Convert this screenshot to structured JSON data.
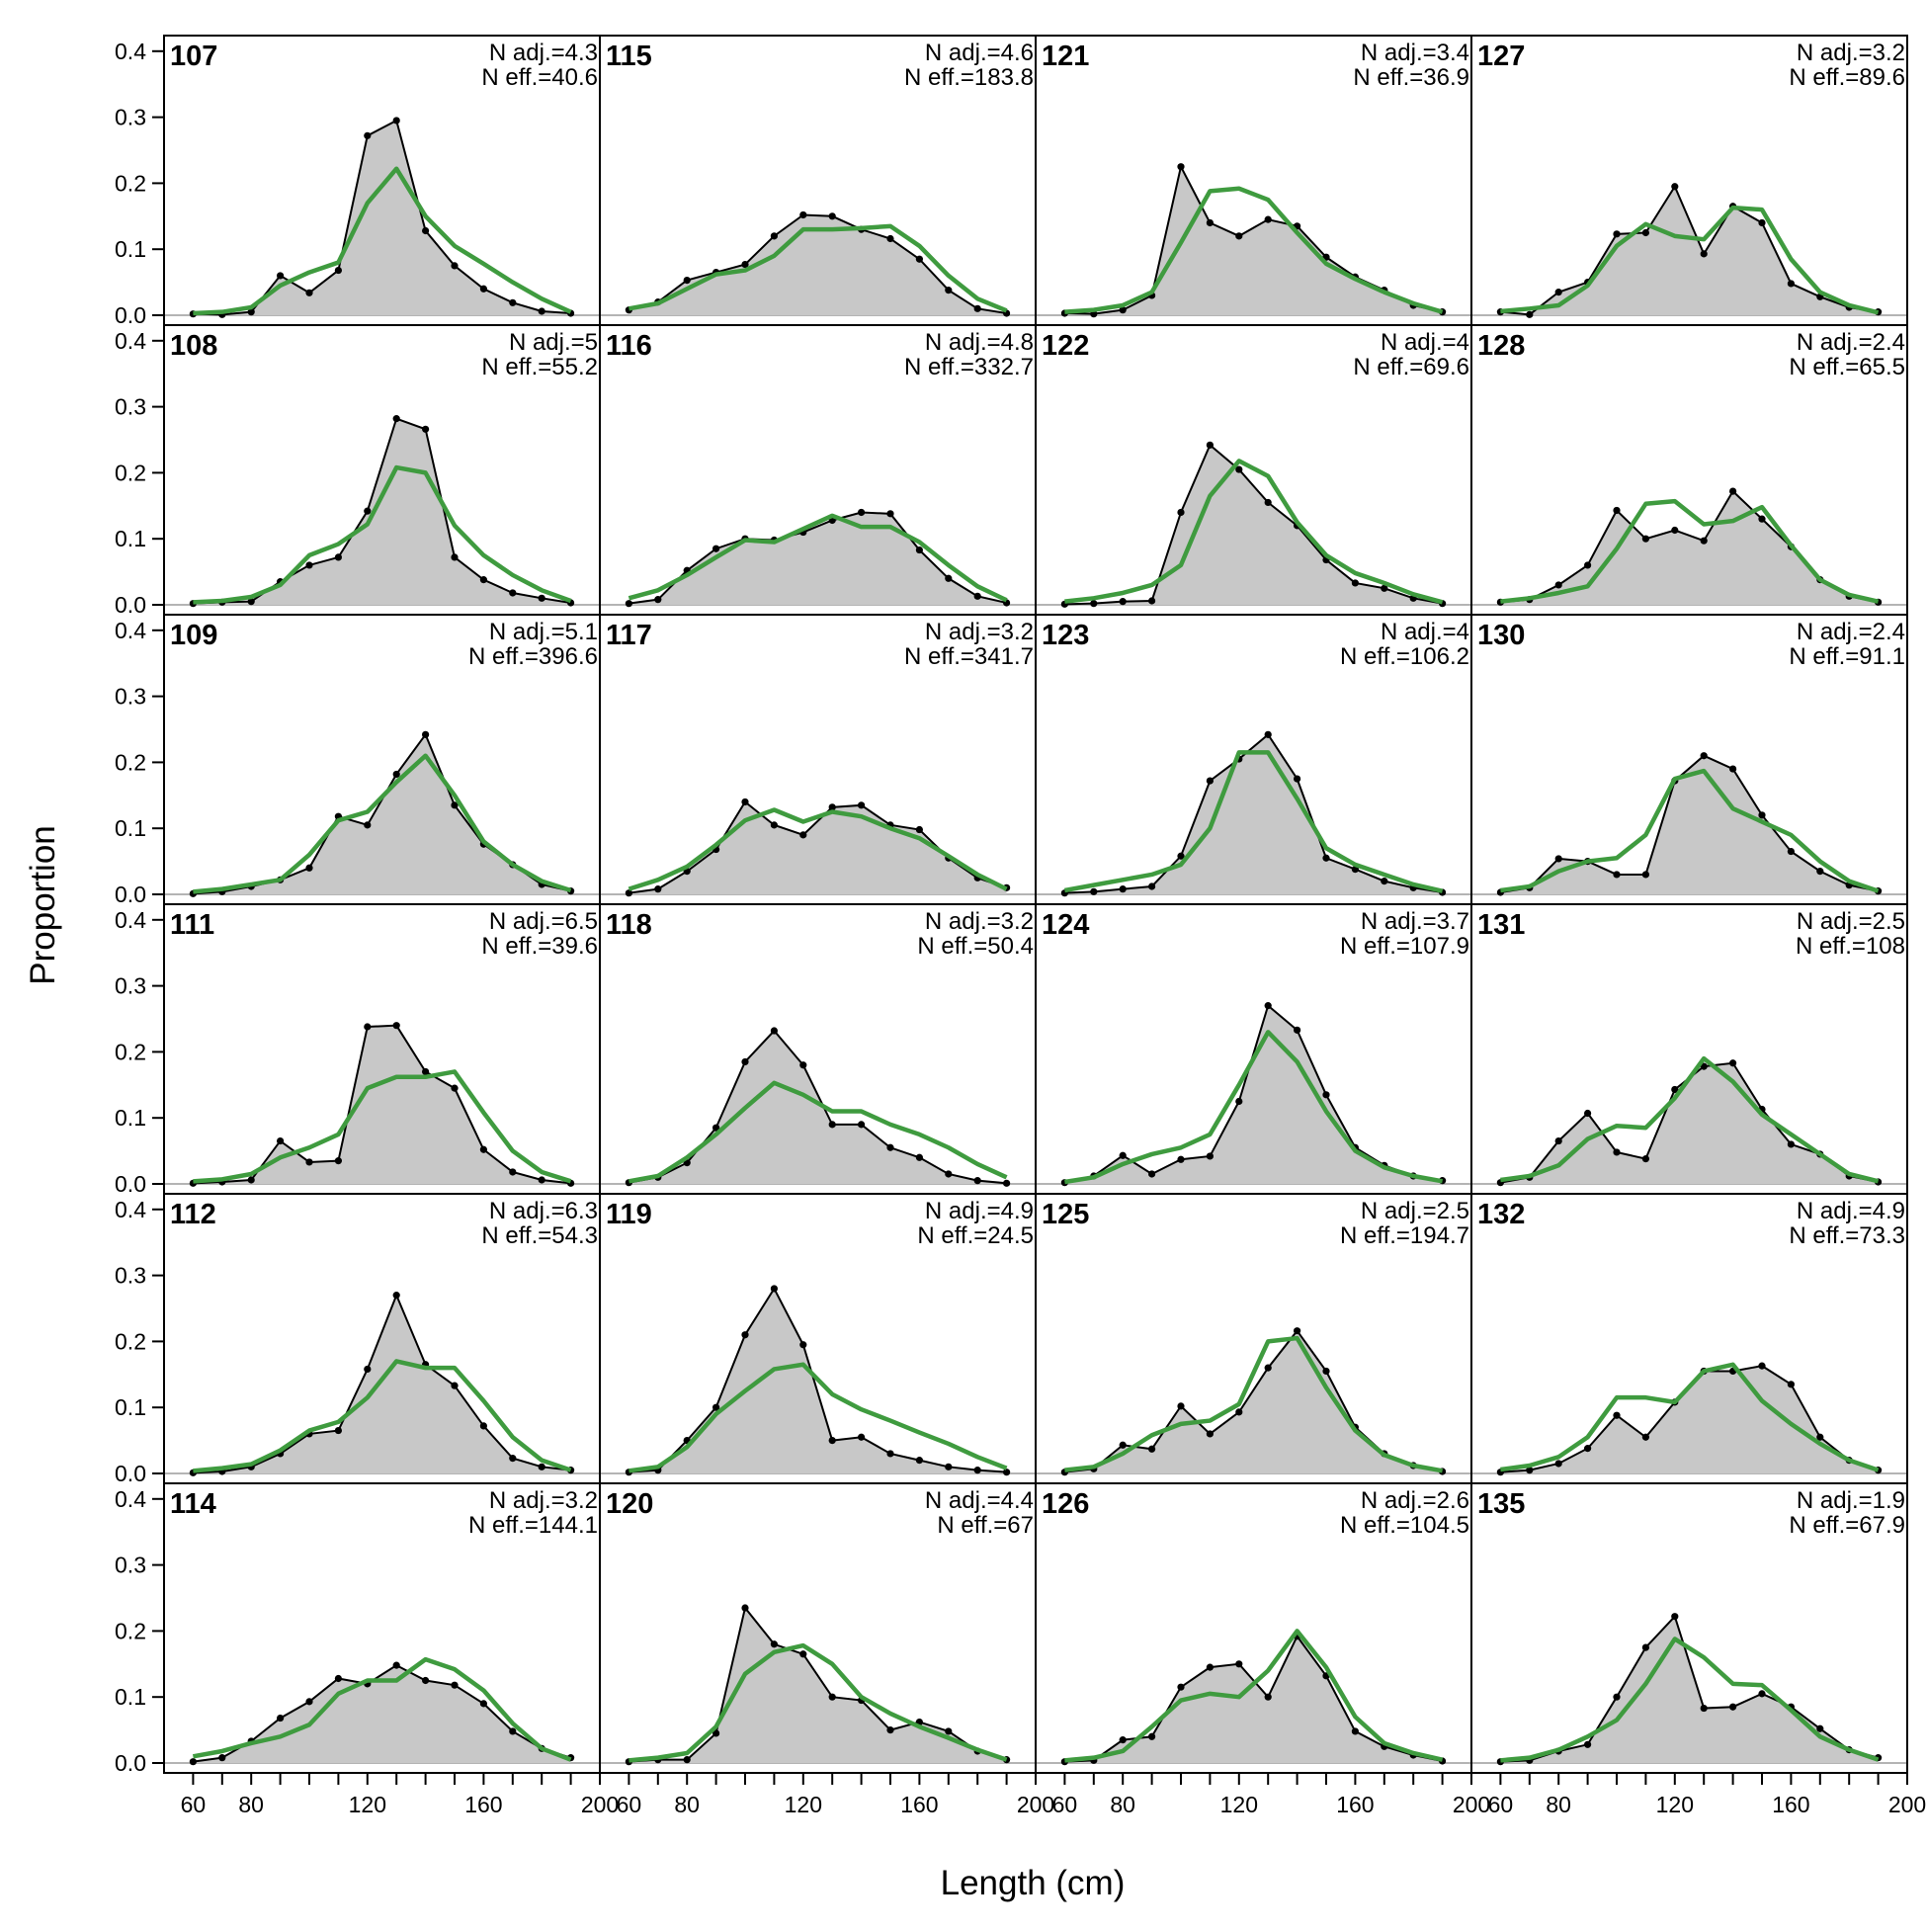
{
  "chart_data": {
    "type": "area",
    "xlabel": "Length (cm)",
    "ylabel": "Proportion",
    "xlim": [
      50,
      200
    ],
    "ylim": [
      0,
      0.4
    ],
    "x_ticks": [
      60,
      80,
      120,
      160,
      200
    ],
    "y_ticks": [
      0.0,
      0.1,
      0.2,
      0.3,
      0.4
    ],
    "y_tick_labels": [
      "0.0",
      "0.1",
      "0.2",
      "0.3",
      "0.4"
    ],
    "x_bins": [
      60,
      70,
      80,
      90,
      100,
      110,
      120,
      130,
      140,
      150,
      160,
      170,
      180,
      190
    ],
    "grid": false,
    "colors": {
      "observed_fill": "#c8c8c8",
      "observed_line": "#000000",
      "expected_line": "#3f9b3f",
      "zero_line": "#b4b4b4"
    },
    "panels": [
      {
        "label": "107",
        "n_adj": "N adj.=4.3",
        "n_eff": "N eff.=40.6",
        "observed": [
          0.002,
          0.001,
          0.005,
          0.06,
          0.034,
          0.068,
          0.272,
          0.295,
          0.128,
          0.075,
          0.04,
          0.019,
          0.006,
          0.003
        ],
        "expected": [
          0.003,
          0.005,
          0.012,
          0.045,
          0.065,
          0.08,
          0.17,
          0.222,
          0.15,
          0.105,
          0.078,
          0.05,
          0.025,
          0.005
        ]
      },
      {
        "label": "115",
        "n_adj": "N adj.=4.6",
        "n_eff": "N eff.=183.8",
        "observed": [
          0.008,
          0.02,
          0.053,
          0.065,
          0.077,
          0.12,
          0.152,
          0.15,
          0.13,
          0.116,
          0.085,
          0.038,
          0.01,
          0.003
        ],
        "expected": [
          0.01,
          0.018,
          0.04,
          0.062,
          0.068,
          0.09,
          0.13,
          0.13,
          0.132,
          0.135,
          0.105,
          0.06,
          0.025,
          0.007
        ]
      },
      {
        "label": "121",
        "n_adj": "N adj.=3.4",
        "n_eff": "N eff.=36.9",
        "observed": [
          0.003,
          0.002,
          0.008,
          0.03,
          0.225,
          0.14,
          0.12,
          0.145,
          0.135,
          0.088,
          0.058,
          0.038,
          0.015,
          0.005
        ],
        "expected": [
          0.005,
          0.008,
          0.015,
          0.035,
          0.11,
          0.188,
          0.192,
          0.175,
          0.125,
          0.078,
          0.055,
          0.035,
          0.018,
          0.005
        ]
      },
      {
        "label": "127",
        "n_adj": "N adj.=3.2",
        "n_eff": "N eff.=89.6",
        "observed": [
          0.005,
          0.001,
          0.035,
          0.05,
          0.123,
          0.125,
          0.195,
          0.093,
          0.165,
          0.14,
          0.048,
          0.028,
          0.012,
          0.005
        ],
        "expected": [
          0.006,
          0.01,
          0.015,
          0.045,
          0.105,
          0.138,
          0.12,
          0.115,
          0.163,
          0.16,
          0.085,
          0.035,
          0.015,
          0.004
        ]
      },
      {
        "label": "108",
        "n_adj": "N adj.=5",
        "n_eff": "N eff.=55.2",
        "observed": [
          0.002,
          0.004,
          0.005,
          0.035,
          0.06,
          0.072,
          0.142,
          0.282,
          0.266,
          0.072,
          0.038,
          0.018,
          0.01,
          0.003
        ],
        "expected": [
          0.004,
          0.006,
          0.012,
          0.03,
          0.075,
          0.092,
          0.122,
          0.208,
          0.2,
          0.12,
          0.075,
          0.045,
          0.022,
          0.006
        ]
      },
      {
        "label": "116",
        "n_adj": "N adj.=4.8",
        "n_eff": "N eff.=332.7",
        "observed": [
          0.002,
          0.008,
          0.052,
          0.085,
          0.1,
          0.098,
          0.11,
          0.128,
          0.14,
          0.138,
          0.083,
          0.04,
          0.013,
          0.003
        ],
        "expected": [
          0.01,
          0.022,
          0.045,
          0.072,
          0.098,
          0.095,
          0.115,
          0.135,
          0.118,
          0.118,
          0.095,
          0.06,
          0.028,
          0.007
        ]
      },
      {
        "label": "122",
        "n_adj": "N adj.=4",
        "n_eff": "N eff.=69.6",
        "observed": [
          0.001,
          0.002,
          0.005,
          0.006,
          0.14,
          0.242,
          0.205,
          0.155,
          0.12,
          0.068,
          0.033,
          0.025,
          0.01,
          0.002
        ],
        "expected": [
          0.005,
          0.01,
          0.018,
          0.03,
          0.06,
          0.165,
          0.218,
          0.195,
          0.125,
          0.075,
          0.048,
          0.033,
          0.016,
          0.004
        ]
      },
      {
        "label": "128",
        "n_adj": "N adj.=2.4",
        "n_eff": "N eff.=65.5",
        "observed": [
          0.004,
          0.008,
          0.03,
          0.06,
          0.143,
          0.1,
          0.113,
          0.097,
          0.172,
          0.13,
          0.088,
          0.038,
          0.013,
          0.004
        ],
        "expected": [
          0.005,
          0.01,
          0.018,
          0.028,
          0.085,
          0.153,
          0.157,
          0.122,
          0.127,
          0.148,
          0.09,
          0.038,
          0.015,
          0.005
        ]
      },
      {
        "label": "109",
        "n_adj": "N adj.=5.1",
        "n_eff": "N eff.=396.6",
        "observed": [
          0.001,
          0.004,
          0.012,
          0.022,
          0.04,
          0.118,
          0.105,
          0.182,
          0.242,
          0.135,
          0.076,
          0.045,
          0.015,
          0.005
        ],
        "expected": [
          0.004,
          0.008,
          0.015,
          0.022,
          0.06,
          0.112,
          0.125,
          0.17,
          0.21,
          0.15,
          0.08,
          0.045,
          0.02,
          0.006
        ]
      },
      {
        "label": "117",
        "n_adj": "N adj.=3.2",
        "n_eff": "N eff.=341.7",
        "observed": [
          0.002,
          0.008,
          0.035,
          0.068,
          0.14,
          0.105,
          0.09,
          0.132,
          0.135,
          0.105,
          0.098,
          0.055,
          0.025,
          0.01
        ],
        "expected": [
          0.008,
          0.022,
          0.042,
          0.075,
          0.112,
          0.128,
          0.11,
          0.125,
          0.118,
          0.1,
          0.085,
          0.058,
          0.03,
          0.008
        ]
      },
      {
        "label": "123",
        "n_adj": "N adj.=4",
        "n_eff": "N eff.=106.2",
        "observed": [
          0.002,
          0.004,
          0.008,
          0.012,
          0.058,
          0.172,
          0.205,
          0.242,
          0.175,
          0.055,
          0.038,
          0.02,
          0.01,
          0.003
        ],
        "expected": [
          0.006,
          0.014,
          0.022,
          0.03,
          0.045,
          0.1,
          0.215,
          0.215,
          0.145,
          0.07,
          0.045,
          0.03,
          0.015,
          0.005
        ]
      },
      {
        "label": "130",
        "n_adj": "N adj.=2.4",
        "n_eff": "N eff.=91.1",
        "observed": [
          0.003,
          0.01,
          0.054,
          0.05,
          0.03,
          0.03,
          0.172,
          0.21,
          0.19,
          0.12,
          0.065,
          0.035,
          0.014,
          0.005
        ],
        "expected": [
          0.006,
          0.012,
          0.035,
          0.05,
          0.055,
          0.09,
          0.175,
          0.187,
          0.13,
          0.11,
          0.09,
          0.05,
          0.02,
          0.005
        ]
      },
      {
        "label": "111",
        "n_adj": "N adj.=6.5",
        "n_eff": "N eff.=39.6",
        "observed": [
          0.001,
          0.003,
          0.006,
          0.065,
          0.033,
          0.035,
          0.238,
          0.24,
          0.17,
          0.145,
          0.052,
          0.018,
          0.006,
          0.001
        ],
        "expected": [
          0.004,
          0.007,
          0.015,
          0.04,
          0.055,
          0.075,
          0.145,
          0.162,
          0.162,
          0.17,
          0.108,
          0.05,
          0.018,
          0.004
        ]
      },
      {
        "label": "118",
        "n_adj": "N adj.=3.2",
        "n_eff": "N eff.=50.4",
        "observed": [
          0.002,
          0.01,
          0.032,
          0.085,
          0.185,
          0.232,
          0.18,
          0.09,
          0.09,
          0.055,
          0.04,
          0.015,
          0.005,
          0.001
        ],
        "expected": [
          0.004,
          0.012,
          0.04,
          0.075,
          0.115,
          0.153,
          0.135,
          0.11,
          0.11,
          0.09,
          0.075,
          0.055,
          0.03,
          0.01
        ]
      },
      {
        "label": "124",
        "n_adj": "N adj.=3.7",
        "n_eff": "N eff.=107.9",
        "observed": [
          0.002,
          0.012,
          0.043,
          0.015,
          0.037,
          0.042,
          0.125,
          0.27,
          0.233,
          0.135,
          0.055,
          0.028,
          0.012,
          0.005
        ],
        "expected": [
          0.003,
          0.01,
          0.03,
          0.045,
          0.055,
          0.075,
          0.15,
          0.23,
          0.185,
          0.11,
          0.05,
          0.025,
          0.012,
          0.004
        ]
      },
      {
        "label": "131",
        "n_adj": "N adj.=2.5",
        "n_eff": "N eff.=108",
        "observed": [
          0.002,
          0.01,
          0.065,
          0.107,
          0.048,
          0.038,
          0.143,
          0.178,
          0.183,
          0.113,
          0.06,
          0.045,
          0.012,
          0.003
        ],
        "expected": [
          0.006,
          0.012,
          0.028,
          0.068,
          0.088,
          0.085,
          0.13,
          0.19,
          0.155,
          0.105,
          0.075,
          0.045,
          0.015,
          0.004
        ]
      },
      {
        "label": "112",
        "n_adj": "N adj.=6.3",
        "n_eff": "N eff.=54.3",
        "observed": [
          0.001,
          0.003,
          0.01,
          0.03,
          0.06,
          0.065,
          0.158,
          0.27,
          0.165,
          0.133,
          0.072,
          0.023,
          0.01,
          0.005
        ],
        "expected": [
          0.004,
          0.008,
          0.014,
          0.035,
          0.065,
          0.078,
          0.115,
          0.17,
          0.16,
          0.16,
          0.11,
          0.055,
          0.02,
          0.005
        ]
      },
      {
        "label": "119",
        "n_adj": "N adj.=4.9",
        "n_eff": "N eff.=24.5",
        "observed": [
          0.002,
          0.005,
          0.05,
          0.1,
          0.21,
          0.28,
          0.195,
          0.05,
          0.055,
          0.03,
          0.02,
          0.01,
          0.005,
          0.002
        ],
        "expected": [
          0.004,
          0.01,
          0.04,
          0.09,
          0.125,
          0.158,
          0.165,
          0.12,
          0.097,
          0.08,
          0.062,
          0.045,
          0.025,
          0.008
        ]
      },
      {
        "label": "125",
        "n_adj": "N adj.=2.5",
        "n_eff": "N eff.=194.7",
        "observed": [
          0.002,
          0.007,
          0.043,
          0.037,
          0.102,
          0.06,
          0.093,
          0.16,
          0.216,
          0.155,
          0.07,
          0.03,
          0.012,
          0.003
        ],
        "expected": [
          0.005,
          0.01,
          0.03,
          0.058,
          0.075,
          0.08,
          0.105,
          0.2,
          0.205,
          0.13,
          0.065,
          0.028,
          0.012,
          0.004
        ]
      },
      {
        "label": "132",
        "n_adj": "N adj.=4.9",
        "n_eff": "N eff.=73.3",
        "observed": [
          0.002,
          0.005,
          0.015,
          0.038,
          0.088,
          0.055,
          0.108,
          0.155,
          0.155,
          0.163,
          0.135,
          0.055,
          0.02,
          0.005
        ],
        "expected": [
          0.006,
          0.012,
          0.025,
          0.055,
          0.115,
          0.115,
          0.108,
          0.155,
          0.165,
          0.11,
          0.075,
          0.045,
          0.02,
          0.005
        ]
      },
      {
        "label": "114",
        "n_adj": "N adj.=3.2",
        "n_eff": "N eff.=144.1",
        "observed": [
          0.002,
          0.008,
          0.033,
          0.068,
          0.093,
          0.128,
          0.12,
          0.148,
          0.125,
          0.118,
          0.09,
          0.048,
          0.022,
          0.008
        ],
        "expected": [
          0.01,
          0.018,
          0.03,
          0.04,
          0.058,
          0.105,
          0.125,
          0.125,
          0.157,
          0.142,
          0.11,
          0.06,
          0.022,
          0.005
        ]
      },
      {
        "label": "120",
        "n_adj": "N adj.=4.4",
        "n_eff": "N eff.=67",
        "observed": [
          0.002,
          0.005,
          0.005,
          0.045,
          0.235,
          0.18,
          0.165,
          0.1,
          0.095,
          0.05,
          0.062,
          0.048,
          0.018,
          0.005
        ],
        "expected": [
          0.004,
          0.008,
          0.015,
          0.055,
          0.135,
          0.168,
          0.178,
          0.15,
          0.1,
          0.075,
          0.055,
          0.038,
          0.02,
          0.005
        ]
      },
      {
        "label": "126",
        "n_adj": "N adj.=2.6",
        "n_eff": "N eff.=104.5",
        "observed": [
          0.002,
          0.004,
          0.035,
          0.04,
          0.115,
          0.145,
          0.15,
          0.1,
          0.192,
          0.132,
          0.048,
          0.025,
          0.012,
          0.003
        ],
        "expected": [
          0.004,
          0.008,
          0.018,
          0.055,
          0.095,
          0.105,
          0.1,
          0.14,
          0.2,
          0.145,
          0.07,
          0.03,
          0.015,
          0.005
        ]
      },
      {
        "label": "135",
        "n_adj": "N adj.=1.9",
        "n_eff": "N eff.=67.9",
        "observed": [
          0.002,
          0.004,
          0.018,
          0.028,
          0.1,
          0.175,
          0.222,
          0.083,
          0.085,
          0.105,
          0.085,
          0.052,
          0.02,
          0.008
        ],
        "expected": [
          0.004,
          0.008,
          0.02,
          0.04,
          0.065,
          0.12,
          0.188,
          0.16,
          0.12,
          0.118,
          0.08,
          0.04,
          0.02,
          0.005
        ]
      }
    ]
  }
}
